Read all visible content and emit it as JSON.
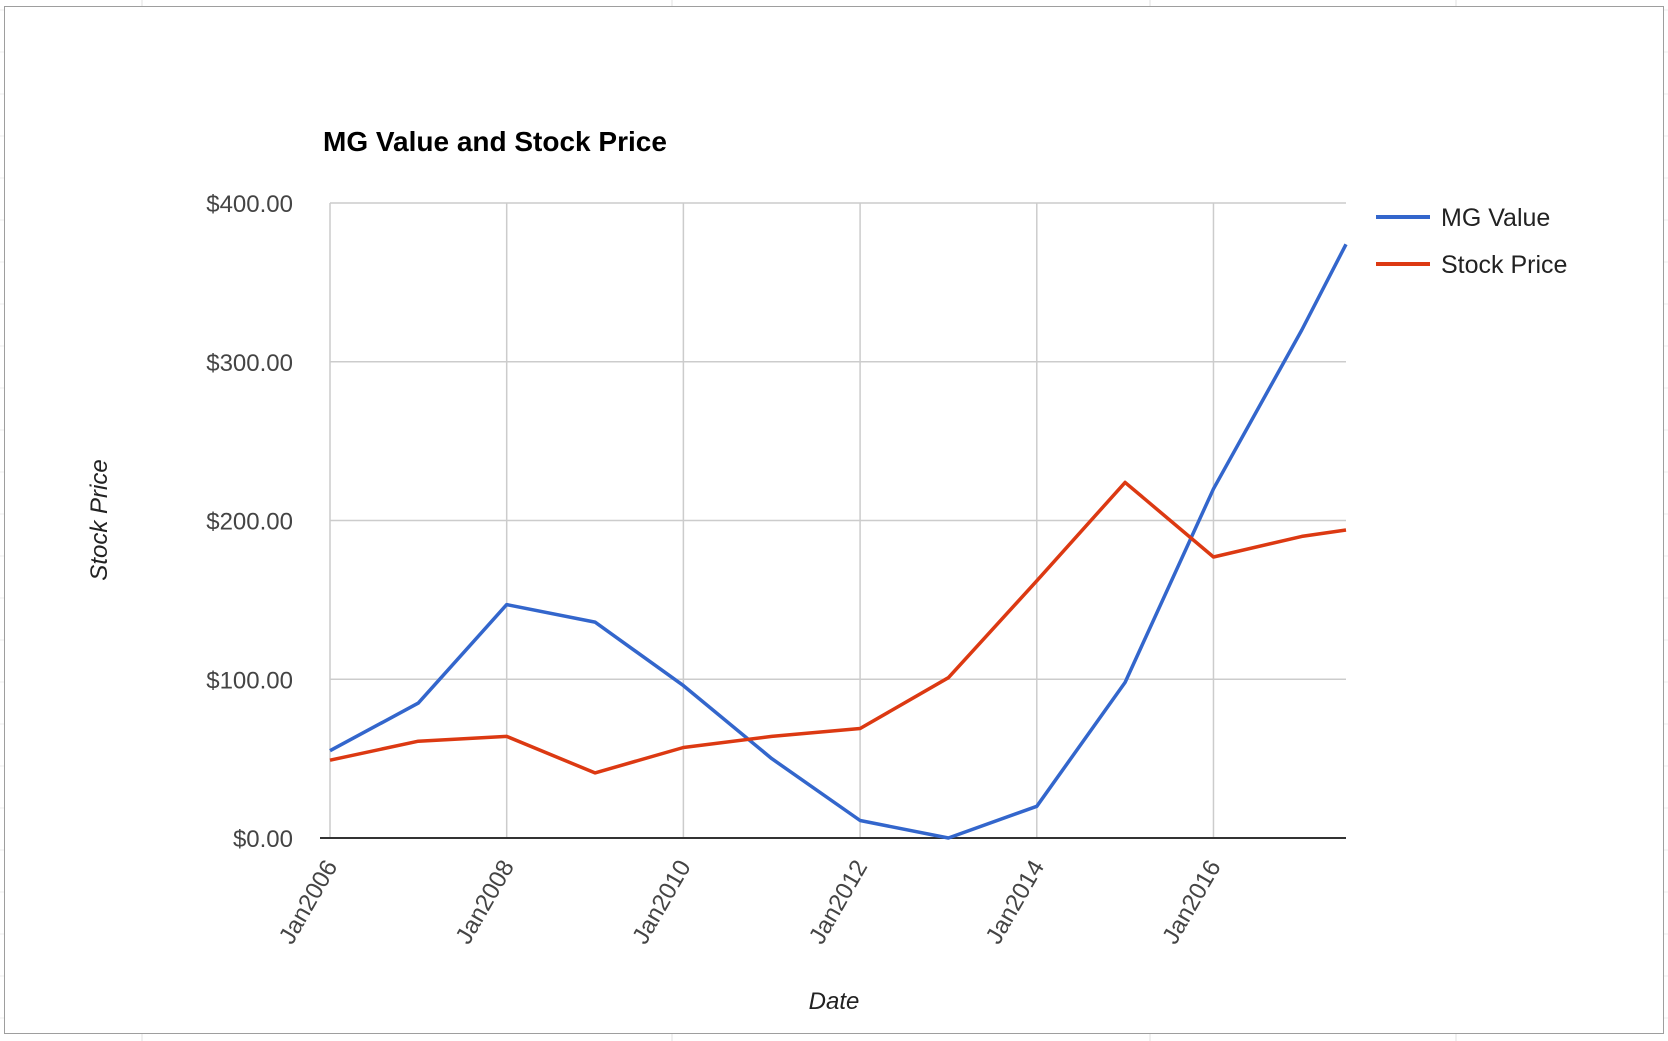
{
  "chart_data": {
    "type": "line",
    "title": "MG Value and Stock Price",
    "xlabel": "Date",
    "ylabel": "Stock Price",
    "x_tick_labels": [
      "Jan2006",
      "Jan2008",
      "Jan2010",
      "Jan2012",
      "Jan2014",
      "Jan2016"
    ],
    "y_tick_labels": [
      "$0.00",
      "$100.00",
      "$200.00",
      "$300.00",
      "$400.00"
    ],
    "y_ticks": [
      0,
      100,
      200,
      300,
      400
    ],
    "ylim": [
      0,
      400
    ],
    "xlim": [
      "2006-01",
      "2017-07"
    ],
    "grid": true,
    "legend_position": "right",
    "x": [
      "2006-01",
      "2007-01",
      "2008-01",
      "2009-01",
      "2010-01",
      "2011-01",
      "2012-01",
      "2013-01",
      "2014-01",
      "2015-01",
      "2016-01",
      "2017-01",
      "2017-07"
    ],
    "series": [
      {
        "name": "MG Value",
        "color": "#3366cc",
        "values": [
          55,
          85,
          147,
          136,
          96,
          50,
          11,
          0,
          20,
          98,
          220,
          320,
          374
        ]
      },
      {
        "name": "Stock Price",
        "color": "#dc3912",
        "values": [
          49,
          61,
          64,
          41,
          57,
          64,
          69,
          101,
          162,
          224,
          177,
          190,
          194
        ]
      }
    ]
  }
}
